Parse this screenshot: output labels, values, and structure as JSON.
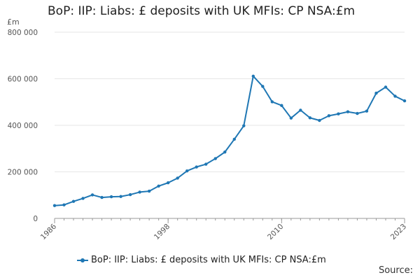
{
  "title": "BoP: IIP: Liabs: £ deposits with UK MFIs: CP NSA:£m",
  "unit": "£m",
  "source": "Source:",
  "colors": {
    "series": "#1f77b4",
    "grid": "#e6e6e6",
    "axis": "#999999",
    "tick_text": "#555555"
  },
  "chart_data": {
    "type": "line",
    "title": "BoP: IIP: Liabs: £ deposits with UK MFIs: CP NSA:£m",
    "xlabel": "",
    "ylabel": "£m",
    "xlim": [
      1986,
      2023
    ],
    "ylim": [
      0,
      800000
    ],
    "y_ticks": [
      0,
      200000,
      400000,
      600000,
      800000
    ],
    "y_tick_labels": [
      "0",
      "200 000",
      "400 000",
      "600 000",
      "800 000"
    ],
    "x_ticks": [
      1986,
      1998,
      2010,
      2023
    ],
    "x_tick_labels": [
      "1986",
      "1998",
      "2010",
      "2023"
    ],
    "grid": true,
    "legend_position": "bottom",
    "series": [
      {
        "name": "BoP: IIP: Liabs: £ deposits with UK MFIs: CP NSA:£m",
        "x": [
          1986,
          1987,
          1988,
          1989,
          1990,
          1991,
          1992,
          1993,
          1994,
          1995,
          1996,
          1997,
          1998,
          1999,
          2000,
          2001,
          2002,
          2003,
          2004,
          2005,
          2006,
          2007,
          2008,
          2009,
          2010,
          2011,
          2012,
          2013,
          2014,
          2015,
          2016,
          2017,
          2018,
          2019,
          2020,
          2021,
          2022,
          2023
        ],
        "values": [
          55000,
          58000,
          73000,
          86000,
          101000,
          90000,
          93000,
          94000,
          102000,
          113000,
          117000,
          139000,
          153000,
          173000,
          204000,
          221000,
          233000,
          257000,
          285000,
          340000,
          398000,
          611000,
          567000,
          501000,
          485000,
          431000,
          465000,
          432000,
          421000,
          441000,
          449000,
          458000,
          451000,
          461000,
          538000,
          564000,
          525000,
          505000
        ]
      }
    ]
  }
}
